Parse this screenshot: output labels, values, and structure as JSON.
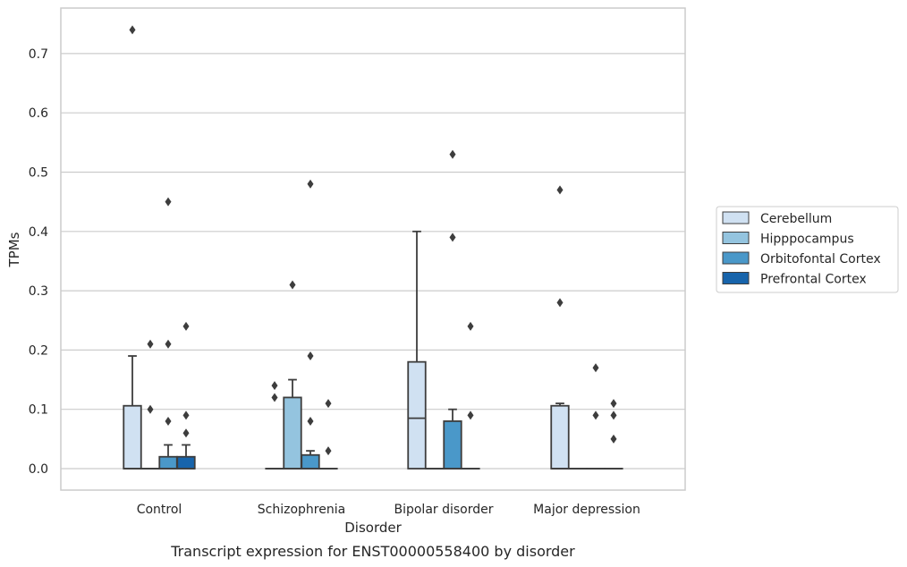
{
  "caption": "Transcript expression for ENST00000558400 by disorder",
  "chart_data": {
    "type": "box",
    "xlabel": "Disorder",
    "ylabel": "TPMs",
    "ylim": [
      -0.035,
      0.775
    ],
    "yticks": [
      "0.0",
      "0.1",
      "0.2",
      "0.3",
      "0.4",
      "0.5",
      "0.6",
      "0.7"
    ],
    "grid": true,
    "legend_position": "right",
    "categories": [
      "Control",
      "Schizophrenia",
      "Bipolar disorder",
      "Major depression"
    ],
    "series": [
      {
        "name": "Cerebellum",
        "color": "#d0e1f2",
        "boxes": [
          {
            "q1": 0,
            "median": 0,
            "q3": 0.106,
            "whisker_low": 0,
            "whisker_high": 0.19,
            "outliers": [
              0.74
            ]
          },
          {
            "q1": 0,
            "median": 0,
            "q3": 0,
            "whisker_low": 0,
            "whisker_high": 0,
            "outliers": [
              0.14,
              0.12
            ]
          },
          {
            "q1": 0,
            "median": 0.085,
            "q3": 0.18,
            "whisker_low": 0,
            "whisker_high": 0.4,
            "outliers": []
          },
          {
            "q1": 0,
            "median": 0,
            "q3": 0.106,
            "whisker_low": 0,
            "whisker_high": 0.11,
            "outliers": [
              0.47,
              0.28
            ]
          }
        ]
      },
      {
        "name": "Hipppocampus",
        "color": "#94c4df",
        "boxes": [
          {
            "q1": 0,
            "median": 0,
            "q3": 0,
            "whisker_low": 0,
            "whisker_high": 0,
            "outliers": [
              0.21,
              0.1
            ]
          },
          {
            "q1": 0,
            "median": 0,
            "q3": 0.12,
            "whisker_low": 0,
            "whisker_high": 0.15,
            "outliers": [
              0.31
            ]
          },
          {
            "q1": 0,
            "median": 0,
            "q3": 0,
            "whisker_low": 0,
            "whisker_high": 0,
            "outliers": []
          },
          {
            "q1": 0,
            "median": 0,
            "q3": 0,
            "whisker_low": 0,
            "whisker_high": 0,
            "outliers": []
          }
        ]
      },
      {
        "name": "Orbitofontal Cortex",
        "color": "#4a98c9",
        "boxes": [
          {
            "q1": 0,
            "median": 0,
            "q3": 0.02,
            "whisker_low": 0,
            "whisker_high": 0.04,
            "outliers": [
              0.45,
              0.21,
              0.08
            ]
          },
          {
            "q1": 0,
            "median": 0,
            "q3": 0.023,
            "whisker_low": 0,
            "whisker_high": 0.03,
            "outliers": [
              0.48,
              0.19,
              0.08
            ]
          },
          {
            "q1": 0,
            "median": 0,
            "q3": 0.08,
            "whisker_low": 0,
            "whisker_high": 0.1,
            "outliers": [
              0.53,
              0.39
            ]
          },
          {
            "q1": 0,
            "median": 0,
            "q3": 0,
            "whisker_low": 0,
            "whisker_high": 0,
            "outliers": [
              0.17,
              0.09
            ]
          }
        ]
      },
      {
        "name": "Prefrontal Cortex",
        "color": "#1764ab",
        "boxes": [
          {
            "q1": 0,
            "median": 0,
            "q3": 0.02,
            "whisker_low": 0,
            "whisker_high": 0.04,
            "outliers": [
              0.24,
              0.09,
              0.06
            ]
          },
          {
            "q1": 0,
            "median": 0,
            "q3": 0,
            "whisker_low": 0,
            "whisker_high": 0,
            "outliers": [
              0.11,
              0.03
            ]
          },
          {
            "q1": 0,
            "median": 0,
            "q3": 0,
            "whisker_low": 0,
            "whisker_high": 0,
            "outliers": [
              0.24,
              0.09
            ]
          },
          {
            "q1": 0,
            "median": 0,
            "q3": 0,
            "whisker_low": 0,
            "whisker_high": 0,
            "outliers": [
              0.11,
              0.09,
              0.05
            ]
          }
        ]
      }
    ]
  }
}
